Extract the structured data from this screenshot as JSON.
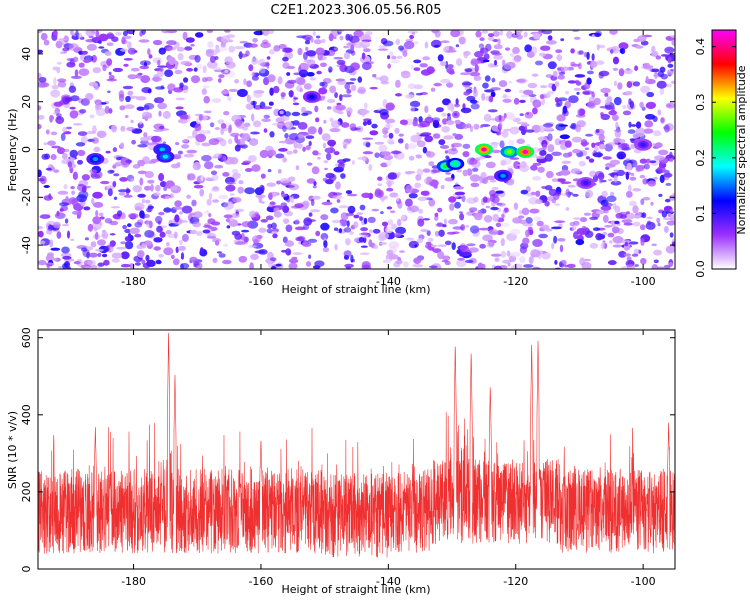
{
  "title": "C2E1.2023.306.05.56.R05",
  "chart_data": [
    {
      "type": "heatmap",
      "xlabel": "Height of straight line (km)",
      "ylabel": "Frequency (Hz)",
      "xlim": [
        -195,
        -95
      ],
      "ylim": [
        -50,
        50
      ],
      "x_ticks": [
        -180,
        -160,
        -140,
        -120,
        -100
      ],
      "y_ticks": [
        -40,
        -20,
        0,
        20,
        40
      ],
      "colorbar": {
        "label": "Normalized spectral amplitude",
        "range": [
          0.0,
          0.43
        ],
        "ticks": [
          0.0,
          0.1,
          0.2,
          0.3,
          0.4
        ],
        "colors": [
          "#ffffff",
          "#9b30ff",
          "#0000ff",
          "#00ffff",
          "#00ff00",
          "#ffff00",
          "#ff0000",
          "#ff00ff"
        ]
      },
      "hotspots": [
        {
          "x": -186,
          "y": -4,
          "amplitude": 0.16
        },
        {
          "x": -175.5,
          "y": 0,
          "amplitude": 0.17
        },
        {
          "x": -175,
          "y": -3,
          "amplitude": 0.18
        },
        {
          "x": -131,
          "y": -7,
          "amplitude": 0.25
        },
        {
          "x": -129.5,
          "y": -6,
          "amplitude": 0.22
        },
        {
          "x": -125,
          "y": 0,
          "amplitude": 0.41
        },
        {
          "x": -121,
          "y": -1,
          "amplitude": 0.28
        },
        {
          "x": -118.5,
          "y": -1,
          "amplitude": 0.42
        },
        {
          "x": -122,
          "y": -11,
          "amplitude": 0.16
        },
        {
          "x": -152,
          "y": 22,
          "amplitude": 0.12
        },
        {
          "x": -109,
          "y": -14,
          "amplitude": 0.1
        },
        {
          "x": -100,
          "y": 2,
          "amplitude": 0.1
        }
      ]
    },
    {
      "type": "line",
      "xlabel": "Height of straight line (km)",
      "ylabel": "SNR (10 * v/v)",
      "xlim": [
        -195,
        -95
      ],
      "ylim": [
        0,
        620
      ],
      "x_ticks": [
        -180,
        -160,
        -140,
        -120,
        -100
      ],
      "y_ticks": [
        0,
        200,
        400,
        600
      ],
      "line_color": "#f03030",
      "baseline": 150,
      "spikes": [
        {
          "x": -174.5,
          "y": 620
        },
        {
          "x": -173.5,
          "y": 510
        },
        {
          "x": -129.5,
          "y": 590
        },
        {
          "x": -127,
          "y": 570
        },
        {
          "x": -124,
          "y": 480
        },
        {
          "x": -117.5,
          "y": 590
        },
        {
          "x": -116.5,
          "y": 600
        },
        {
          "x": -186,
          "y": 370
        },
        {
          "x": -160,
          "y": 340
        },
        {
          "x": -96,
          "y": 380
        }
      ]
    }
  ]
}
